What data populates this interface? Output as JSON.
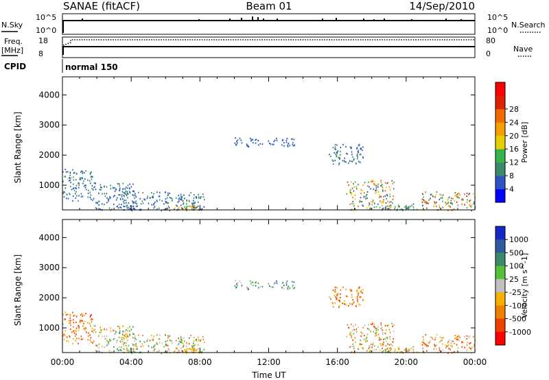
{
  "header": {
    "station": "SANAE (fitACF)",
    "beam": "Beam 01",
    "date": "14/Sep/2010"
  },
  "top_panels": {
    "nsky_label": "N.Sky",
    "nsky_ticks": [
      "10^5",
      "10^0"
    ],
    "nsearch_label": "N.Search",
    "nsearch_ticks": [
      "10^5",
      "10^0"
    ],
    "freq_label_1": "Freq.",
    "freq_label_2": "[MHz]",
    "freq_ticks": [
      "18",
      "8"
    ],
    "nave_label": "Nave",
    "nave_ticks": [
      "80",
      "0"
    ],
    "cpid_label": "CPID",
    "cpid_value": "normal 150"
  },
  "chart_data": [
    {
      "type": "heatmap",
      "name": "power",
      "ylabel": "Slant Range [km]",
      "xlabel": "",
      "x_ticks": [
        "00:00",
        "04:00",
        "08:00",
        "12:00",
        "16:00",
        "20:00",
        "00:00"
      ],
      "y_ticks": [
        1000,
        2000,
        3000,
        4000
      ],
      "ylim": [
        180,
        4600
      ],
      "xlim_hours": [
        0,
        24
      ],
      "colorbar": {
        "label": "Power [dB]",
        "ticks": [
          "4",
          "8",
          "12",
          "16",
          "20",
          "24",
          "28"
        ],
        "colors": [
          "#0000ff",
          "#2b56c2",
          "#3c8a6a",
          "#36b34a",
          "#e6cf00",
          "#f5a000",
          "#f06a00",
          "#e02000",
          "#ff0000"
        ]
      },
      "echo_regions": [
        {
          "t": [
            0.0,
            1.8
          ],
          "r": [
            500,
            1550
          ],
          "level": [
            1,
            2
          ]
        },
        {
          "t": [
            1.8,
            4.2
          ],
          "r": [
            180,
            1100
          ],
          "level": [
            1,
            2
          ]
        },
        {
          "t": [
            3.5,
            8.3
          ],
          "r": [
            180,
            800
          ],
          "level": [
            1,
            2
          ]
        },
        {
          "t": [
            6.0,
            8.0
          ],
          "r": [
            180,
            350
          ],
          "level": [
            3,
            7
          ]
        },
        {
          "t": [
            10.0,
            13.5
          ],
          "r": [
            2300,
            2600
          ],
          "level": [
            1,
            1
          ]
        },
        {
          "t": [
            15.5,
            17.5
          ],
          "r": [
            1700,
            2400
          ],
          "level": [
            1,
            2
          ]
        },
        {
          "t": [
            16.5,
            19.3
          ],
          "r": [
            180,
            1200
          ],
          "level": [
            1,
            6
          ]
        },
        {
          "t": [
            19.3,
            20.8
          ],
          "r": [
            180,
            400
          ],
          "level": [
            1,
            3
          ]
        },
        {
          "t": [
            20.8,
            24.0
          ],
          "r": [
            180,
            800
          ],
          "level": [
            1,
            7
          ]
        }
      ]
    },
    {
      "type": "heatmap",
      "name": "velocity",
      "ylabel": "Slant Range [km]",
      "xlabel": "Time UT",
      "x_ticks": [
        "00:00",
        "04:00",
        "08:00",
        "12:00",
        "16:00",
        "20:00",
        "00:00"
      ],
      "y_ticks": [
        1000,
        2000,
        3000,
        4000
      ],
      "ylim": [
        180,
        4600
      ],
      "xlim_hours": [
        0,
        24
      ],
      "colorbar": {
        "label": "Velocity [m s^-1]",
        "ticks": [
          "1000",
          "500",
          "100",
          "25",
          "-25",
          "-100",
          "-500",
          "-1000"
        ],
        "colors": [
          "#1428c8",
          "#2e5ca0",
          "#3a8a66",
          "#52c23a",
          "#c0c0c0",
          "#f5b000",
          "#f08000",
          "#f04000",
          "#ff0000"
        ]
      },
      "echo_regions": [
        {
          "t": [
            0.0,
            1.8
          ],
          "r": [
            500,
            1550
          ],
          "level": [
            5,
            7
          ]
        },
        {
          "t": [
            1.8,
            4.2
          ],
          "r": [
            180,
            1100
          ],
          "level": [
            2,
            6
          ]
        },
        {
          "t": [
            3.5,
            8.3
          ],
          "r": [
            180,
            800
          ],
          "level": [
            2,
            6
          ]
        },
        {
          "t": [
            6.0,
            8.0
          ],
          "r": [
            180,
            350
          ],
          "level": [
            5,
            6
          ]
        },
        {
          "t": [
            10.0,
            13.5
          ],
          "r": [
            2300,
            2600
          ],
          "level": [
            1,
            4
          ]
        },
        {
          "t": [
            15.5,
            17.5
          ],
          "r": [
            1700,
            2400
          ],
          "level": [
            5,
            7
          ]
        },
        {
          "t": [
            16.5,
            19.3
          ],
          "r": [
            180,
            1200
          ],
          "level": [
            3,
            7
          ]
        },
        {
          "t": [
            19.3,
            20.8
          ],
          "r": [
            180,
            400
          ],
          "level": [
            3,
            6
          ]
        },
        {
          "t": [
            20.8,
            24.0
          ],
          "r": [
            180,
            800
          ],
          "level": [
            4,
            7
          ]
        }
      ]
    }
  ]
}
